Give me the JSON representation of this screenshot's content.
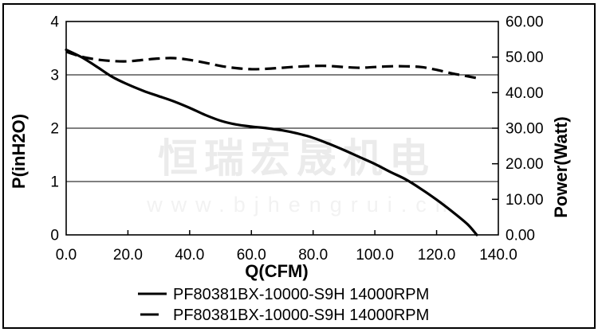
{
  "chart_data": {
    "type": "line",
    "title": "",
    "xlabel": "Q(CFM)",
    "ylabel_left": "P(inH2O)",
    "ylabel_right": "Power(Watt)",
    "x_range": [
      0,
      140
    ],
    "y_left_range": [
      0,
      4
    ],
    "y_right_range": [
      0,
      60
    ],
    "x_tick_labels": [
      "0.0",
      "20.0",
      "40.0",
      "60.0",
      "80.0",
      "100.0",
      "120.0",
      "140.0"
    ],
    "y_left_tick_labels": [
      "4",
      "3",
      "2",
      "1",
      "0"
    ],
    "y_right_tick_labels": [
      "60.00",
      "50.00",
      "40.00",
      "30.00",
      "20.00",
      "10.00",
      "0.00"
    ],
    "gridlines_left_values": [
      1,
      2,
      3
    ],
    "grid": "horizontal-only",
    "legend_position": "bottom-center",
    "series": [
      {
        "name": "PF80381BX-10000-S9H 14000RPM",
        "axis": "left",
        "style": "solid",
        "unit": "inH2O",
        "points": [
          [
            0,
            3.47
          ],
          [
            5,
            3.33
          ],
          [
            10,
            3.15
          ],
          [
            15,
            2.96
          ],
          [
            20,
            2.82
          ],
          [
            25,
            2.7
          ],
          [
            30,
            2.6
          ],
          [
            35,
            2.5
          ],
          [
            40,
            2.38
          ],
          [
            45,
            2.25
          ],
          [
            50,
            2.14
          ],
          [
            55,
            2.07
          ],
          [
            60,
            2.03
          ],
          [
            65,
            2.0
          ],
          [
            70,
            1.96
          ],
          [
            75,
            1.9
          ],
          [
            80,
            1.82
          ],
          [
            85,
            1.71
          ],
          [
            90,
            1.59
          ],
          [
            95,
            1.46
          ],
          [
            100,
            1.33
          ],
          [
            105,
            1.18
          ],
          [
            110,
            1.04
          ],
          [
            115,
            0.86
          ],
          [
            120,
            0.66
          ],
          [
            125,
            0.44
          ],
          [
            130,
            0.2
          ],
          [
            133,
            0
          ]
        ]
      },
      {
        "name": "PF80381BX-10000-S9H 14000RPM",
        "axis": "right",
        "style": "dashed",
        "unit": "Watt",
        "points": [
          [
            0,
            51.5
          ],
          [
            5,
            50.1
          ],
          [
            10,
            49.3
          ],
          [
            15,
            48.9
          ],
          [
            20,
            48.8
          ],
          [
            25,
            49.2
          ],
          [
            30,
            49.6
          ],
          [
            35,
            49.7
          ],
          [
            40,
            49.2
          ],
          [
            45,
            48.4
          ],
          [
            50,
            47.5
          ],
          [
            55,
            46.9
          ],
          [
            60,
            46.6
          ],
          [
            65,
            46.7
          ],
          [
            70,
            47.0
          ],
          [
            75,
            47.3
          ],
          [
            80,
            47.5
          ],
          [
            85,
            47.5
          ],
          [
            90,
            47.2
          ],
          [
            95,
            47.0
          ],
          [
            100,
            47.2
          ],
          [
            105,
            47.4
          ],
          [
            110,
            47.4
          ],
          [
            115,
            47.2
          ],
          [
            120,
            46.4
          ],
          [
            125,
            45.4
          ],
          [
            130,
            44.6
          ],
          [
            133,
            44.1
          ]
        ]
      }
    ]
  },
  "legend": {
    "items": [
      {
        "label": "PF80381BX-10000-S9H 14000RPM",
        "style": "solid"
      },
      {
        "label": "PF80381BX-10000-S9H 14000RPM",
        "style": "dashed"
      }
    ]
  },
  "watermark": {
    "company": "恒瑞宏晟机电",
    "website": "www.bjhengrui.cn"
  }
}
